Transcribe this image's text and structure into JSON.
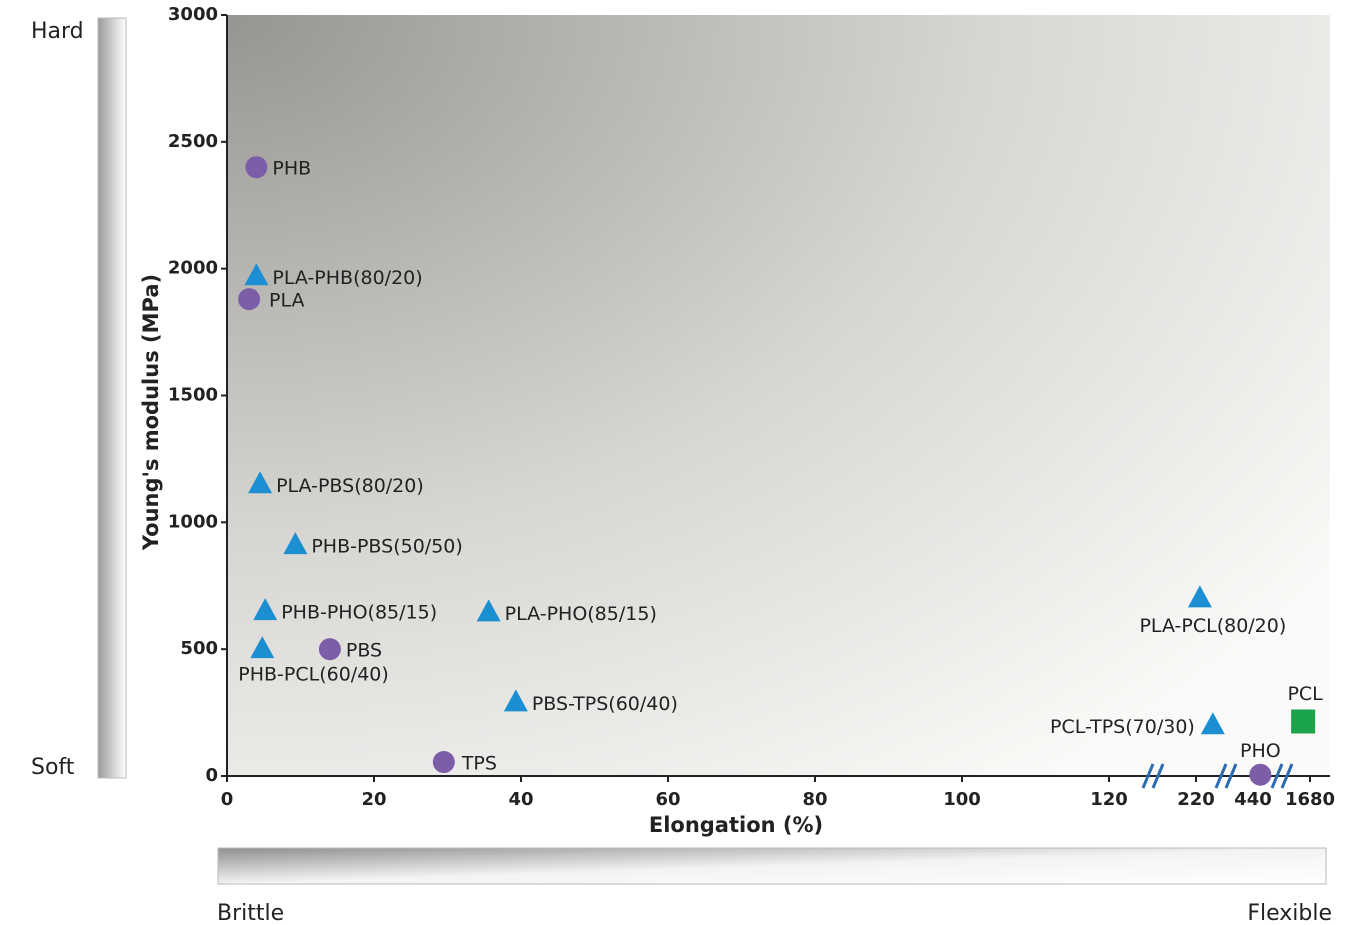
{
  "chart_data": {
    "type": "scatter",
    "ylabel": "Young's modulus (MPa)",
    "xlabel": "Elongation (%)",
    "ylim": [
      0,
      3000
    ],
    "yticks": [
      0,
      500,
      1000,
      1500,
      2000,
      2500,
      3000
    ],
    "xlim": [
      0,
      1680
    ],
    "xticks": [
      0,
      20,
      40,
      60,
      80,
      100,
      120,
      220,
      440,
      1680
    ],
    "axis_breaks": true,
    "side_labels": {
      "hard": "Hard",
      "soft": "Soft",
      "brittle": "Brittle",
      "flexible": "Flexible"
    },
    "series": [
      {
        "marker": "circle",
        "color": "#7b5ea7",
        "points": [
          {
            "label": "PHB",
            "x": 4,
            "y": 2400
          },
          {
            "label": "PLA",
            "x": 3,
            "y": 1880
          },
          {
            "label": "PBS",
            "x": 14,
            "y": 500
          },
          {
            "label": "TPS",
            "x": 29.5,
            "y": 55
          },
          {
            "label": "PHO",
            "x": 600,
            "y": 5
          }
        ]
      },
      {
        "marker": "triangle",
        "color": "#1b8fd2",
        "points": [
          {
            "label": "PLA-PHB(80/20)",
            "x": 4,
            "y": 1970
          },
          {
            "label": "PLA-PBS(80/20)",
            "x": 4.5,
            "y": 1150
          },
          {
            "label": "PHB-PBS(50/50)",
            "x": 9.3,
            "y": 910
          },
          {
            "label": "PHB-PHO(85/15)",
            "x": 5.2,
            "y": 650
          },
          {
            "label": "PLA-PHO(85/15)",
            "x": 35.6,
            "y": 645
          },
          {
            "label": "PHB-PCL(60/40)",
            "x": 4.8,
            "y": 500
          },
          {
            "label": "PBS-TPS(60/40)",
            "x": 39.3,
            "y": 290
          },
          {
            "label": "PLA-PCL(80/20)",
            "x": 235,
            "y": 700
          },
          {
            "label": "PCL-TPS(70/30)",
            "x": 285,
            "y": 200
          }
        ]
      },
      {
        "marker": "square",
        "color": "#1aa34a",
        "points": [
          {
            "label": "PCL",
            "x": 1530,
            "y": 215
          }
        ]
      }
    ]
  }
}
